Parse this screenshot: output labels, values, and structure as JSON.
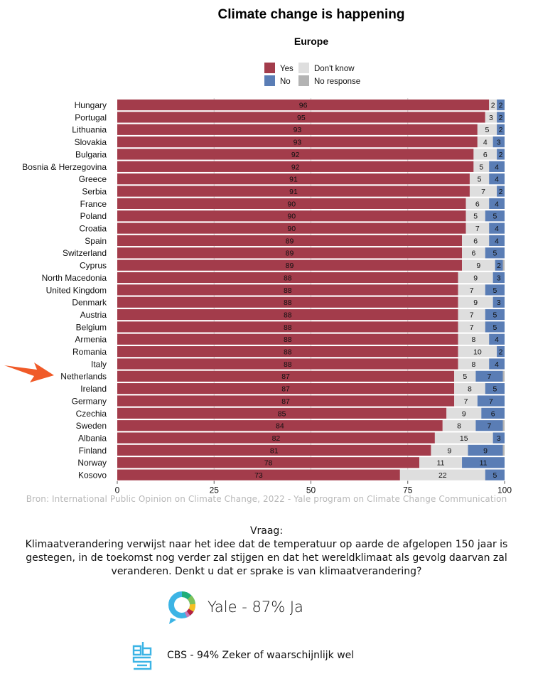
{
  "chart_data": {
    "type": "bar",
    "orientation": "horizontal",
    "stacked": true,
    "title": "Climate change is happening",
    "subtitle": "Europe",
    "xlabel": "",
    "ylabel": "",
    "xlim": [
      0,
      100
    ],
    "xticks": [
      0,
      25,
      50,
      75,
      100
    ],
    "grid": true,
    "legend_position": "top",
    "legend": [
      {
        "name": "Yes",
        "color": "#a33c4b"
      },
      {
        "name": "No",
        "color": "#5a7db5"
      },
      {
        "name": "Don't know",
        "color": "#dedede"
      },
      {
        "name": "No response",
        "color": "#b3b3b3"
      }
    ],
    "categories": [
      "Hungary",
      "Portugal",
      "Lithuania",
      "Slovakia",
      "Bulgaria",
      "Bosnia & Herzegovina",
      "Greece",
      "Serbia",
      "France",
      "Poland",
      "Croatia",
      "Spain",
      "Switzerland",
      "Cyprus",
      "North Macedonia",
      "United Kingdom",
      "Denmark",
      "Austria",
      "Belgium",
      "Armenia",
      "Romania",
      "Italy",
      "Netherlands",
      "Ireland",
      "Germany",
      "Czechia",
      "Sweden",
      "Albania",
      "Finland",
      "Norway",
      "Kosovo"
    ],
    "series": [
      {
        "name": "Yes",
        "color": "#a33c4b",
        "values": [
          96,
          95,
          93,
          93,
          92,
          92,
          91,
          91,
          90,
          90,
          90,
          89,
          89,
          89,
          88,
          88,
          88,
          88,
          88,
          88,
          88,
          88,
          87,
          87,
          87,
          85,
          84,
          82,
          81,
          78,
          73
        ]
      },
      {
        "name": "Don't know",
        "color": "#dedede",
        "values": [
          2,
          3,
          5,
          4,
          6,
          5,
          5,
          7,
          6,
          5,
          7,
          6,
          6,
          9,
          9,
          7,
          9,
          7,
          7,
          8,
          10,
          8,
          5,
          8,
          7,
          9,
          8,
          15,
          9,
          11,
          22
        ]
      },
      {
        "name": "No",
        "color": "#5a7db5",
        "values": [
          2,
          2,
          2,
          3,
          2,
          4,
          4,
          2,
          4,
          5,
          4,
          4,
          5,
          2,
          3,
          5,
          3,
          5,
          5,
          4,
          2,
          4,
          7,
          5,
          7,
          6,
          7,
          3,
          9,
          11,
          5
        ]
      },
      {
        "name": "No response",
        "color": "#b3b3b3",
        "values": [
          0,
          0,
          0,
          0,
          0,
          0,
          0,
          0,
          0,
          0,
          0,
          0,
          0,
          1,
          0,
          0,
          0,
          0,
          0,
          0,
          0,
          0,
          1,
          0,
          0,
          0,
          1,
          0,
          1,
          0,
          0
        ]
      }
    ],
    "highlight": "Netherlands",
    "highlight_color": "#f05a28"
  },
  "source": "Bron: International Public Opinion on Climate Change, 2022 - Yale program on Climate Change Communication",
  "question": {
    "heading": "Vraag:",
    "text": "Klimaatverandering verwijst naar het idee dat de temperatuur op aarde de afgelopen 150 jaar is gestegen, in de toekomst nog verder zal stijgen en dat het wereldklimaat als gevolg daarvan zal veranderen. Denkt u dat er sprake is van klimaatverandering?"
  },
  "results": {
    "yale": {
      "label": "Yale - 87% Ja",
      "icon": "yale-chat-ring-icon"
    },
    "cbs": {
      "label": "CBS - 94% Zeker of waarschijnlijk wel",
      "icon": "cbs-logo-icon"
    }
  }
}
